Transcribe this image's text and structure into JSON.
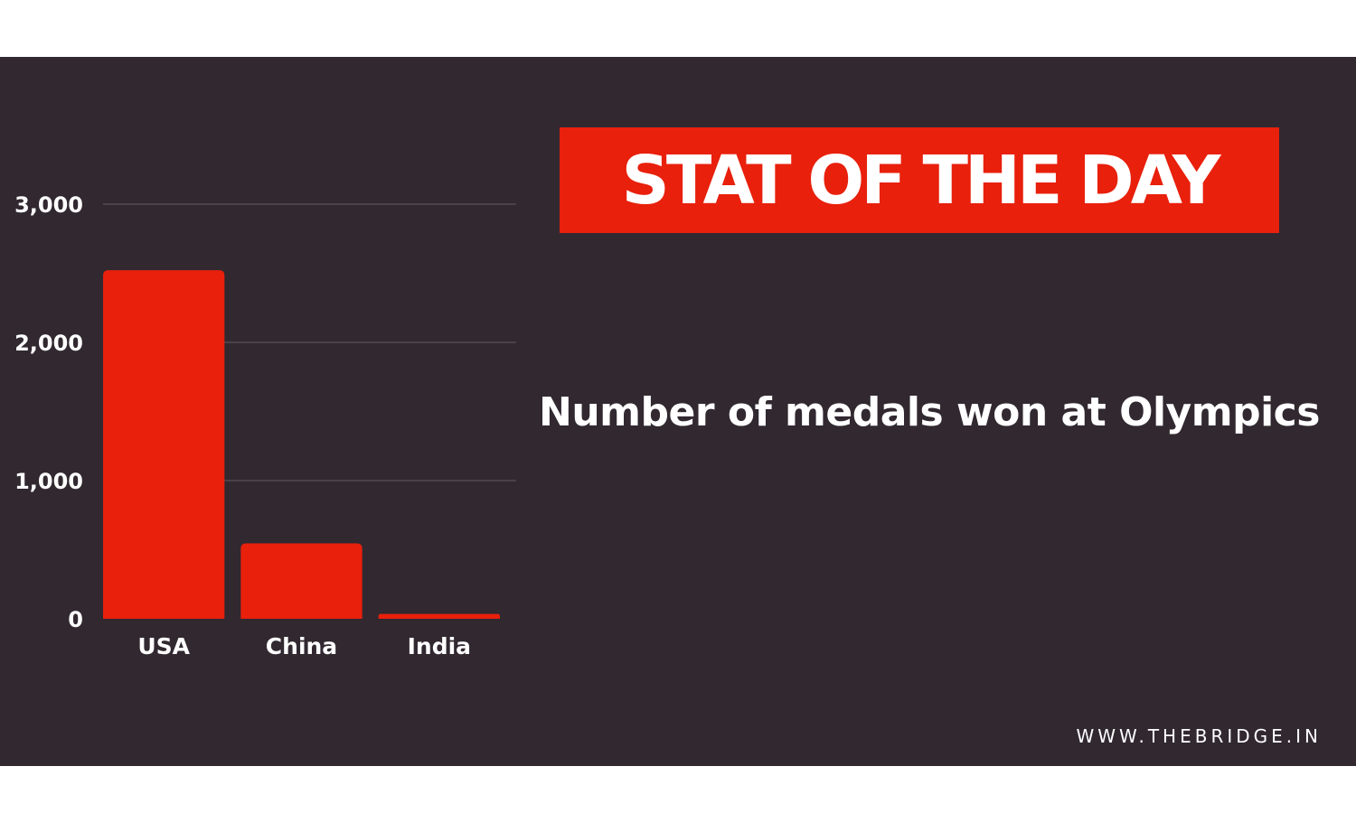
{
  "banner": {
    "text": "STAT OF THE DAY"
  },
  "website": "WWW.THEBRIDGE.IN",
  "colors": {
    "background": "#312830",
    "accent": "#e8200c",
    "text": "#ffffff",
    "grid": "#5a5058"
  },
  "chart_data": {
    "type": "bar",
    "title": "Number of medals won at Olympics",
    "categories": [
      "USA",
      "China",
      "India"
    ],
    "values": [
      2522,
      546,
      35
    ],
    "ylim": [
      0,
      3000
    ],
    "yticks": [
      0,
      1000,
      2000,
      3000
    ],
    "ytick_labels": [
      "0",
      "1,000",
      "2,000",
      "3,000"
    ],
    "xlabel": "",
    "ylabel": "",
    "grid": true,
    "legend": "none"
  }
}
